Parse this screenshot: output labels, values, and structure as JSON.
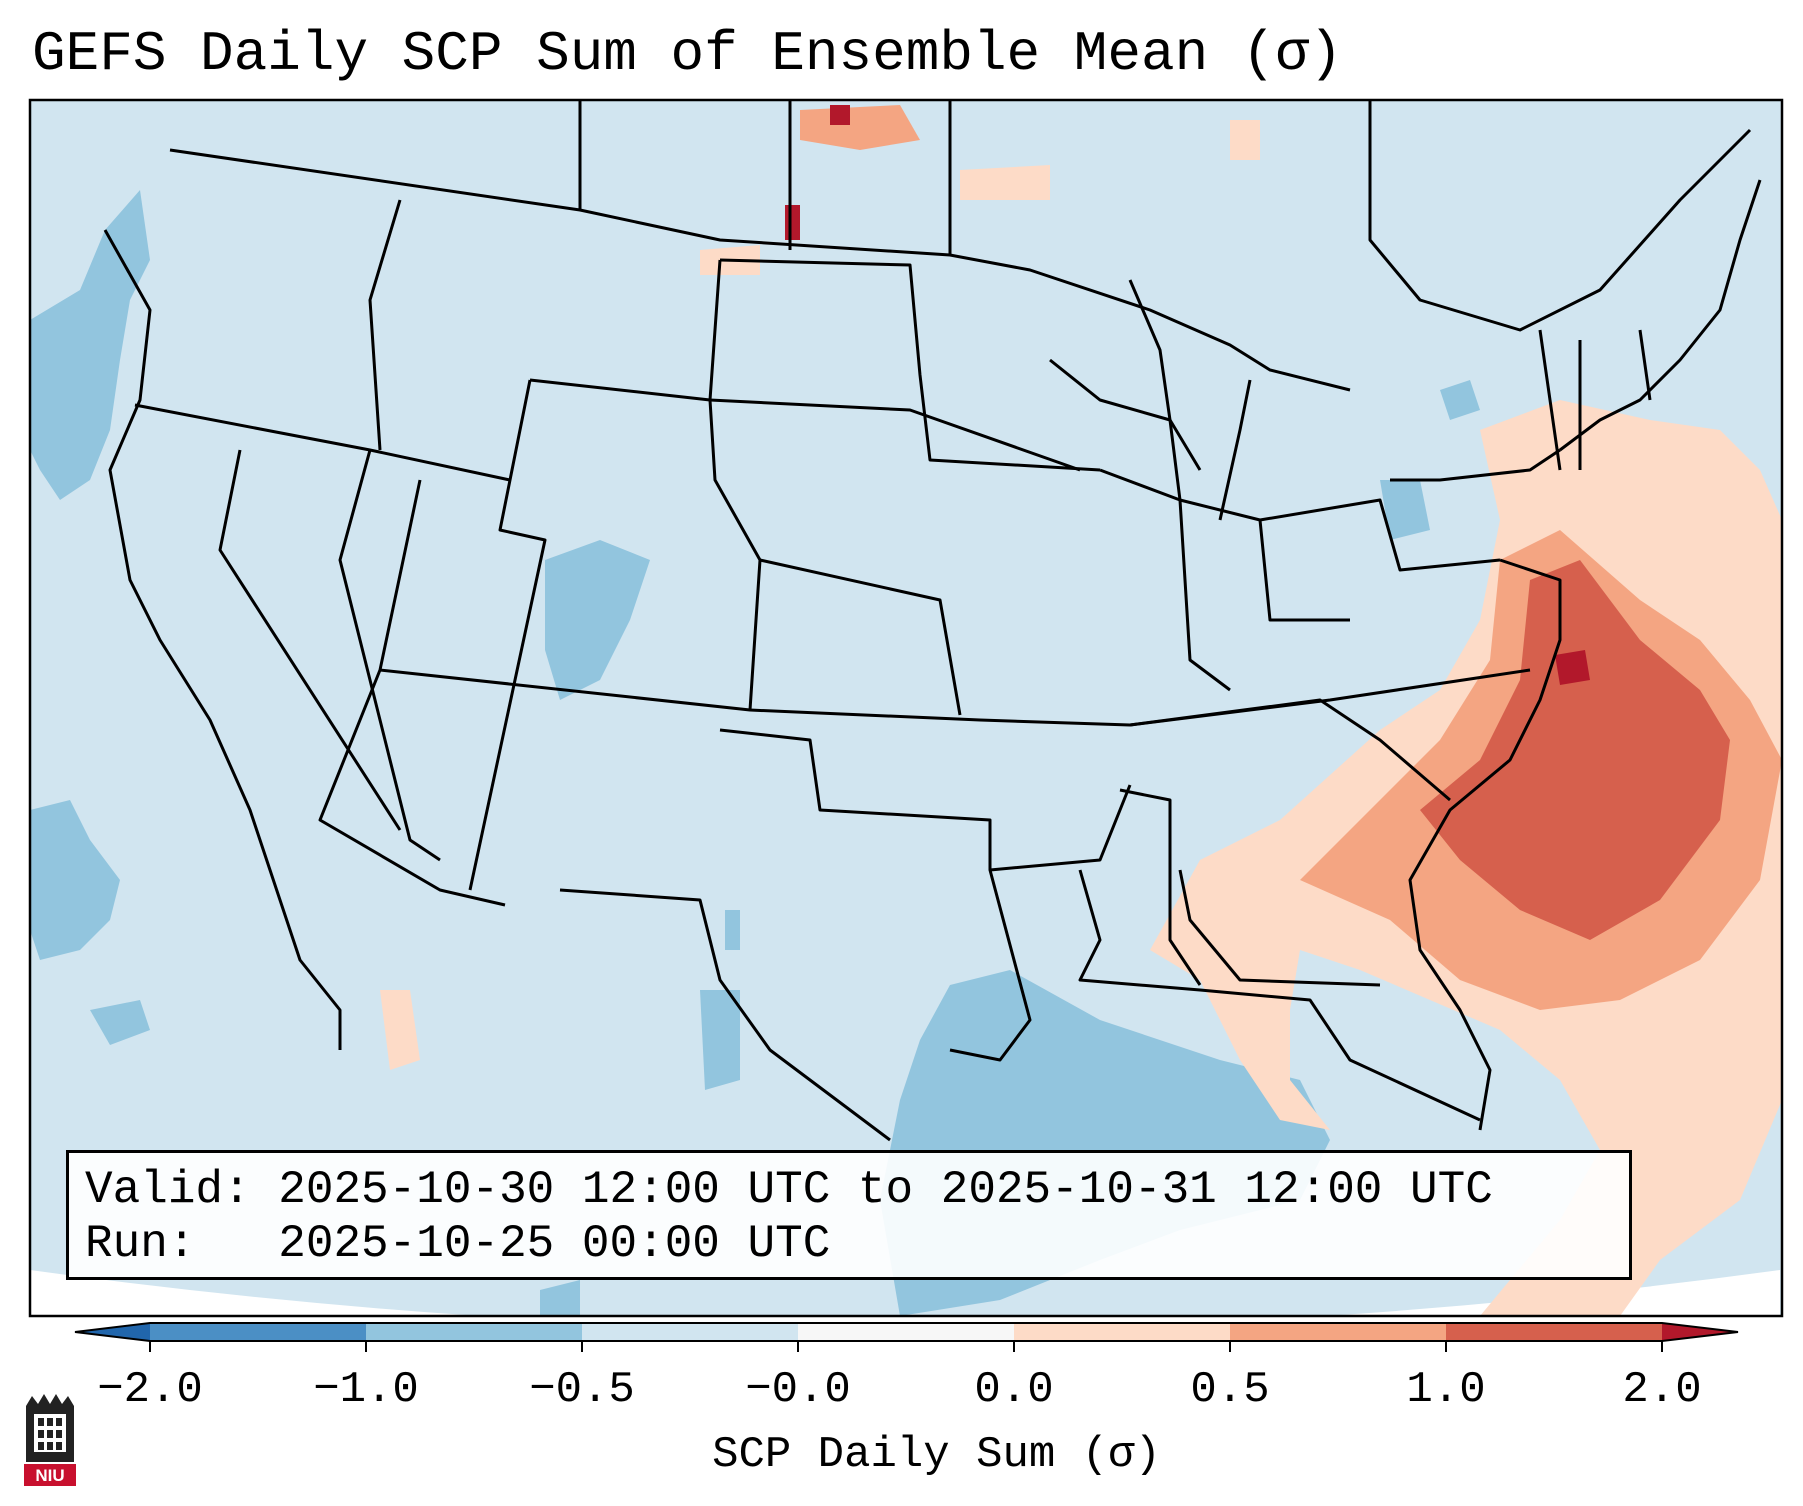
{
  "title": "GEFS Daily SCP Sum of Ensemble Mean (σ)",
  "info": {
    "valid_line": "Valid: 2025-10-30 12:00 UTC to 2025-10-31 12:00 UTC",
    "run_line": "Run:   2025-10-25 00:00 UTC"
  },
  "colorbar": {
    "label": "SCP Daily Sum (σ)",
    "ticks": [
      "−2.0",
      "−1.0",
      "−0.5",
      "−0.0",
      "0.0",
      "0.5",
      "1.0",
      "2.0"
    ],
    "bins": [
      {
        "color": "#4b8fc5",
        "from": "−2.0",
        "to": "−1.0"
      },
      {
        "color": "#92c5de",
        "from": "−1.0",
        "to": "−0.5"
      },
      {
        "color": "#d1e5f0",
        "from": "−0.5",
        "to": "−0.0"
      },
      {
        "color": "#f7f7f7",
        "from": "−0.0",
        "to": "0.0"
      },
      {
        "color": "#fddbc7",
        "from": "0.0",
        "to": "0.5"
      },
      {
        "color": "#f4a582",
        "from": "0.5",
        "to": "1.0"
      },
      {
        "color": "#d6604d",
        "from": "1.0",
        "to": "2.0"
      }
    ],
    "extend_low_color": "#2166ac",
    "extend_high_color": "#b2182b"
  },
  "map": {
    "projection": "lambert-conformal",
    "region": "CONUS",
    "background_color": "#d1e5f0",
    "features": {
      "positive_anomaly_region": "US East Coast and western Atlantic",
      "negative_anomaly_regions": [
        "Pacific coast",
        "Gulf of Mexico",
        "Colorado"
      ]
    }
  },
  "logo": {
    "text": "NIU"
  }
}
